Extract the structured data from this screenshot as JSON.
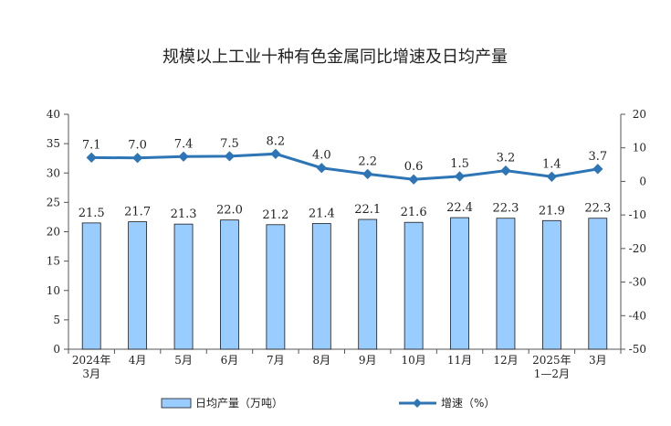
{
  "chart_data": {
    "type": "bar",
    "title": "规模以上工业十种有色金属同比增速及日均产量",
    "categories": [
      [
        "2024年",
        "3月"
      ],
      [
        "4月"
      ],
      [
        "5月"
      ],
      [
        "6月"
      ],
      [
        "7月"
      ],
      [
        "8月"
      ],
      [
        "9月"
      ],
      [
        "10月"
      ],
      [
        "11月"
      ],
      [
        "12月"
      ],
      [
        "2025年",
        "1—2月"
      ],
      [
        "3月"
      ]
    ],
    "series": [
      {
        "name": "日均产量（万吨）",
        "type": "bar",
        "axis": "left",
        "color": "#99ccff",
        "values": [
          21.5,
          21.7,
          21.3,
          22.0,
          21.2,
          21.4,
          22.1,
          21.6,
          22.4,
          22.3,
          21.9,
          22.3
        ],
        "labels": [
          "21.5",
          "21.7",
          "21.3",
          "22.0",
          "21.2",
          "21.4",
          "22.1",
          "21.6",
          "22.4",
          "22.3",
          "21.9",
          "22.3"
        ]
      },
      {
        "name": "增速（%）",
        "type": "line",
        "axis": "right",
        "color": "#2e75b6",
        "values": [
          7.1,
          7.0,
          7.4,
          7.5,
          8.2,
          4.0,
          2.2,
          0.6,
          1.5,
          3.2,
          1.4,
          3.7
        ],
        "labels": [
          "7.1",
          "7.0",
          "7.4",
          "7.5",
          "8.2",
          "4.0",
          "2.2",
          "0.6",
          "1.5",
          "3.2",
          "1.4",
          "3.7"
        ]
      }
    ],
    "y_left": {
      "min": 0,
      "max": 40,
      "ticks": [
        "0",
        "5",
        "10",
        "15",
        "20",
        "25",
        "30",
        "35",
        "40"
      ]
    },
    "y_right": {
      "min": -50,
      "max": 20,
      "ticks": [
        "-50",
        "-40",
        "-30",
        "-20",
        "-10",
        "0",
        "10",
        "20"
      ]
    },
    "legend": {
      "position": "bottom"
    },
    "grid": false
  }
}
